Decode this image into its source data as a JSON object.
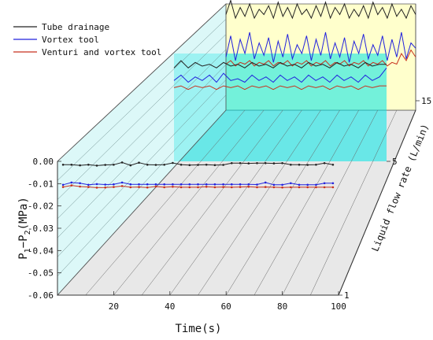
{
  "chart_data": {
    "type": "line",
    "subtype": "3d-waterfall",
    "xlabel": "Time(s)",
    "ylabel_main": "P",
    "ylabel_sub1": "1",
    "ylabel_dash": "−P",
    "ylabel_sub2": "2",
    "ylabel_unit": "(MPa)",
    "zlabel": "Liquid flow rate (L/min)",
    "xlim": [
      0,
      100
    ],
    "ylim": [
      -0.06,
      0.0
    ],
    "x_ticks": [
      {
        "value": 20,
        "label": "20"
      },
      {
        "value": 40,
        "label": "40"
      },
      {
        "value": 60,
        "label": "60"
      },
      {
        "value": 80,
        "label": "80"
      },
      {
        "value": 100,
        "label": "100"
      }
    ],
    "y_ticks": [
      {
        "value": 0.0,
        "label": "0.00"
      },
      {
        "value": -0.01,
        "label": "-0.01"
      },
      {
        "value": -0.02,
        "label": "-0.02"
      },
      {
        "value": -0.03,
        "label": "-0.03"
      },
      {
        "value": -0.04,
        "label": "-0.04"
      },
      {
        "value": -0.05,
        "label": "-0.05"
      },
      {
        "value": -0.06,
        "label": "-0.06"
      }
    ],
    "z_ticks": [
      {
        "value": 1,
        "label": "1"
      },
      {
        "value": 5,
        "label": "5"
      },
      {
        "value": 15,
        "label": "15"
      }
    ],
    "legend": {
      "position": "top-left",
      "items": [
        {
          "label": "Tube drainage",
          "color": "#222222"
        },
        {
          "label": "Vortex tool",
          "color": "#2222dd"
        },
        {
          "label": "Venturi and vortex tool",
          "color": "#c8321e"
        }
      ]
    },
    "front_plane": {
      "flow_rate": 1,
      "x": [
        2,
        5,
        8,
        11,
        14,
        17,
        20,
        23,
        26,
        29,
        32,
        35,
        38,
        41,
        44,
        47,
        50,
        53,
        56,
        59,
        62,
        65,
        68,
        71,
        74,
        77,
        80,
        83,
        86,
        89,
        92,
        95,
        98
      ],
      "series": [
        {
          "name": "Tube drainage",
          "color": "#222222",
          "values": [
            -0.0015,
            -0.0015,
            -0.0018,
            -0.0015,
            -0.0019,
            -0.0016,
            -0.0015,
            -0.0005,
            -0.0018,
            -0.0006,
            -0.0015,
            -0.0016,
            -0.0015,
            -0.0007,
            -0.0015,
            -0.0017,
            -0.0016,
            -0.0015,
            -0.0017,
            -0.0016,
            -0.0008,
            -0.0008,
            -0.0009,
            -0.0008,
            -0.0008,
            -0.0009,
            -0.0008,
            -0.0015,
            -0.0015,
            -0.0016,
            -0.0015,
            -0.0008,
            -0.0015
          ]
        },
        {
          "name": "Vortex tool",
          "color": "#2222dd",
          "values": [
            -0.0105,
            -0.0095,
            -0.0098,
            -0.0105,
            -0.0102,
            -0.0104,
            -0.0103,
            -0.0095,
            -0.0103,
            -0.0103,
            -0.0103,
            -0.0103,
            -0.0103,
            -0.0103,
            -0.0103,
            -0.0103,
            -0.0103,
            -0.0103,
            -0.0103,
            -0.0103,
            -0.0103,
            -0.0103,
            -0.0103,
            -0.0104,
            -0.0095,
            -0.0105,
            -0.0105,
            -0.0098,
            -0.0105,
            -0.0105,
            -0.0105,
            -0.0098,
            -0.0098
          ]
        },
        {
          "name": "Venturi and vortex tool",
          "color": "#c8321e",
          "values": [
            -0.0115,
            -0.0108,
            -0.0113,
            -0.0115,
            -0.0118,
            -0.0117,
            -0.0115,
            -0.0111,
            -0.0116,
            -0.0115,
            -0.0117,
            -0.0113,
            -0.0116,
            -0.0114,
            -0.0116,
            -0.0116,
            -0.0116,
            -0.0114,
            -0.0116,
            -0.0115,
            -0.0116,
            -0.0115,
            -0.0114,
            -0.0116,
            -0.0115,
            -0.0116,
            -0.0117,
            -0.0116,
            -0.0116,
            -0.0116,
            -0.0116,
            -0.0116,
            -0.0116
          ]
        }
      ]
    },
    "middle_plane": {
      "flow_rate": 5,
      "x": [
        0,
        3.3,
        6.7,
        10,
        13.3,
        16.7,
        20,
        23.3,
        26.7,
        30,
        33.3,
        36.7,
        40,
        43.3,
        46.7,
        50,
        53.3,
        56.7,
        60,
        63.3,
        66.7,
        70,
        73.3,
        76.7,
        80,
        83.3,
        86.7,
        90,
        93.3,
        96.7,
        100
      ],
      "series": [
        {
          "name": "Tube drainage",
          "color": "#222222",
          "values": [
            -0.008,
            -0.004,
            -0.008,
            -0.005,
            -0.007,
            -0.006,
            -0.008,
            -0.005,
            -0.007,
            -0.006,
            -0.008,
            -0.005,
            -0.007,
            -0.006,
            -0.008,
            -0.005,
            -0.007,
            -0.006,
            -0.008,
            -0.005,
            -0.007,
            -0.006,
            -0.008,
            -0.005,
            -0.007,
            -0.006,
            -0.008,
            -0.005,
            -0.007,
            -0.006,
            -0.006
          ]
        },
        {
          "name": "Vortex tool",
          "color": "#2222dd",
          "values": [
            -0.015,
            -0.012,
            -0.016,
            -0.013,
            -0.015,
            -0.012,
            -0.016,
            -0.011,
            -0.015,
            -0.014,
            -0.016,
            -0.012,
            -0.015,
            -0.013,
            -0.016,
            -0.012,
            -0.015,
            -0.013,
            -0.016,
            -0.012,
            -0.015,
            -0.013,
            -0.016,
            -0.012,
            -0.015,
            -0.013,
            -0.016,
            -0.012,
            -0.015,
            -0.013,
            -0.008
          ]
        },
        {
          "name": "Venturi and vortex tool",
          "color": "#c8321e",
          "values": [
            -0.019,
            -0.018,
            -0.02,
            -0.018,
            -0.019,
            -0.018,
            -0.02,
            -0.018,
            -0.019,
            -0.018,
            -0.02,
            -0.018,
            -0.019,
            -0.018,
            -0.02,
            -0.018,
            -0.019,
            -0.018,
            -0.02,
            -0.018,
            -0.019,
            -0.018,
            -0.02,
            -0.018,
            -0.019,
            -0.018,
            -0.02,
            -0.018,
            -0.019,
            -0.018,
            -0.018
          ]
        }
      ]
    },
    "back_plane": {
      "flow_rate": 15,
      "x": [
        0,
        2.5,
        5,
        7.5,
        10,
        12.5,
        15,
        17.5,
        20,
        22.5,
        25,
        27.5,
        30,
        32.5,
        35,
        37.5,
        40,
        42.5,
        45,
        47.5,
        50,
        52.5,
        55,
        57.5,
        60,
        62.5,
        65,
        67.5,
        70,
        72.5,
        75,
        77.5,
        80,
        82.5,
        85,
        87.5,
        90,
        92.5,
        95,
        97.5,
        100
      ],
      "series": [
        {
          "name": "Tube drainage",
          "color": "#222222",
          "values": [
            -0.006,
            0.002,
            -0.008,
            -0.002,
            -0.007,
            0.0,
            -0.008,
            -0.003,
            -0.006,
            -0.001,
            -0.008,
            0.001,
            -0.007,
            -0.002,
            -0.008,
            0.0,
            -0.006,
            -0.003,
            -0.008,
            -0.001,
            -0.007,
            0.001,
            -0.008,
            -0.002,
            -0.006,
            0.0,
            -0.008,
            -0.003,
            -0.007,
            -0.001,
            -0.008,
            0.001,
            -0.006,
            -0.002,
            -0.008,
            0.0,
            -0.007,
            -0.003,
            -0.008,
            -0.001,
            -0.006
          ]
        },
        {
          "name": "Vortex tool",
          "color": "#2222dd",
          "values": [
            -0.03,
            -0.018,
            -0.032,
            -0.02,
            -0.028,
            -0.016,
            -0.031,
            -0.022,
            -0.029,
            -0.019,
            -0.033,
            -0.021,
            -0.03,
            -0.017,
            -0.031,
            -0.023,
            -0.028,
            -0.018,
            -0.032,
            -0.02,
            -0.029,
            -0.016,
            -0.031,
            -0.022,
            -0.03,
            -0.019,
            -0.033,
            -0.021,
            -0.028,
            -0.017,
            -0.031,
            -0.023,
            -0.029,
            -0.018,
            -0.032,
            -0.02,
            -0.03,
            -0.016,
            -0.031,
            -0.022,
            -0.025
          ]
        },
        {
          "name": "Venturi and vortex tool",
          "color": "#c8321e",
          "values": [
            -0.034,
            -0.032,
            -0.035,
            -0.033,
            -0.034,
            -0.032,
            -0.035,
            -0.033,
            -0.034,
            -0.032,
            -0.035,
            -0.033,
            -0.034,
            -0.032,
            -0.035,
            -0.033,
            -0.034,
            -0.032,
            -0.035,
            -0.033,
            -0.034,
            -0.032,
            -0.035,
            -0.033,
            -0.034,
            -0.032,
            -0.035,
            -0.033,
            -0.034,
            -0.032,
            -0.035,
            -0.033,
            -0.034,
            -0.032,
            -0.035,
            -0.033,
            -0.034,
            -0.028,
            -0.032,
            -0.026,
            -0.03
          ]
        }
      ]
    }
  }
}
